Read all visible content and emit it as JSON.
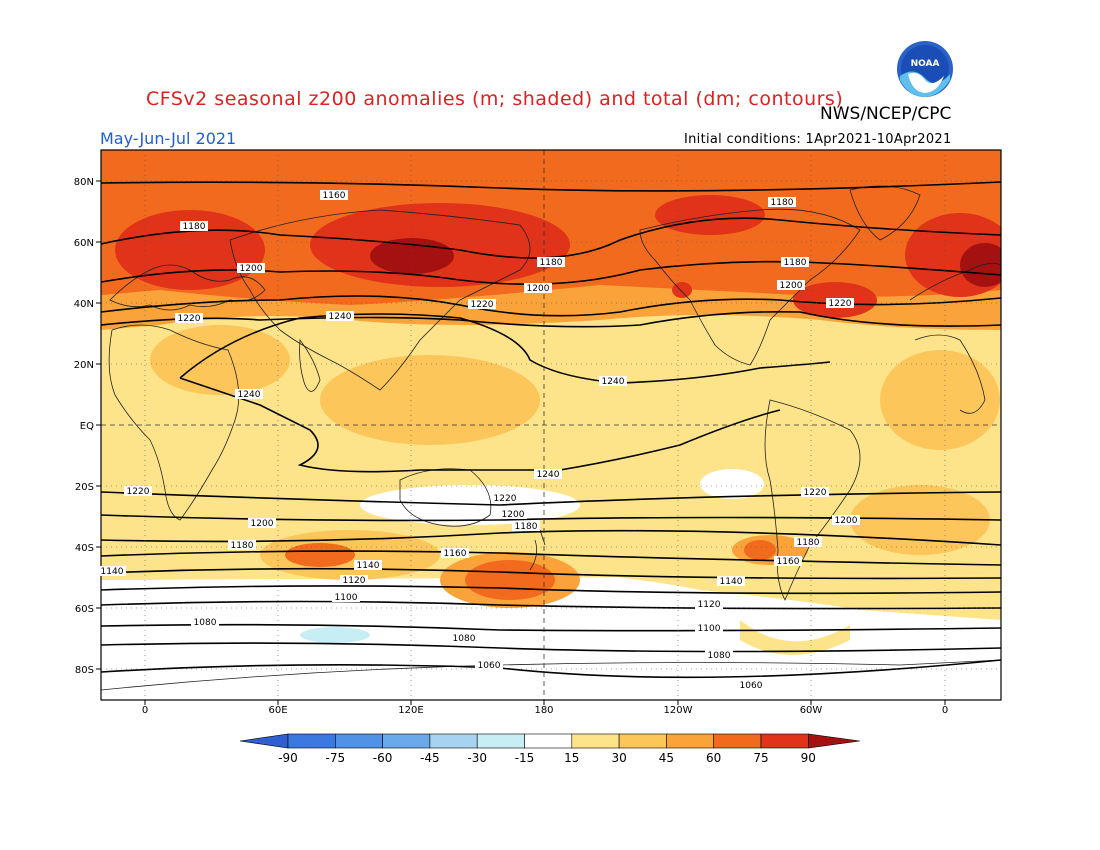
{
  "header": {
    "title": "CFSv2 seasonal z200 anomalies (m; shaded) and total (dm; contours)",
    "agency": "NWS/NCEP/CPC",
    "period": "May-Jun-Jul 2021",
    "initial_conditions": "Initial conditions: 1Apr2021-10Apr2021",
    "logo_text": "NOAA"
  },
  "axes": {
    "lat_labels": [
      "80N",
      "60N",
      "40N",
      "20N",
      "EQ",
      "20S",
      "40S",
      "60S",
      "80S"
    ],
    "lon_labels": [
      "0",
      "60E",
      "120E",
      "180",
      "120W",
      "60W",
      "0"
    ]
  },
  "colorbar": {
    "labels": [
      "-90",
      "-75",
      "-60",
      "-45",
      "-30",
      "-15",
      "15",
      "30",
      "45",
      "60",
      "75",
      "90"
    ],
    "colors": {
      "below_-90": "#2f5fd0",
      "-90_-75": "#3b78e0",
      "-75_-60": "#4f92e6",
      "-60_-45": "#6aa9ea",
      "-45_-30": "#a6d3f0",
      "-30_-15": "#c8eef5",
      "-15_15": "#ffffff",
      "15_30": "#fde48a",
      "30_45": "#fcc65a",
      "45_60": "#f9a33a",
      "60_75": "#f26a1e",
      "75_90": "#e0331a",
      "above_90": "#a51010"
    }
  },
  "contours": {
    "labels": [
      {
        "text": "1160"
      },
      {
        "text": "1180"
      },
      {
        "text": "1180"
      },
      {
        "text": "1200"
      },
      {
        "text": "1180"
      },
      {
        "text": "1180"
      },
      {
        "text": "1200"
      },
      {
        "text": "1200"
      },
      {
        "text": "1220"
      },
      {
        "text": "1220"
      },
      {
        "text": "1220"
      },
      {
        "text": "1240"
      },
      {
        "text": "1240"
      },
      {
        "text": "1240"
      },
      {
        "text": "1240"
      },
      {
        "text": "1220"
      },
      {
        "text": "1220"
      },
      {
        "text": "1220"
      },
      {
        "text": "1200"
      },
      {
        "text": "1200"
      },
      {
        "text": "1200"
      },
      {
        "text": "1180"
      },
      {
        "text": "1180"
      },
      {
        "text": "1160"
      },
      {
        "text": "1180"
      },
      {
        "text": "1140"
      },
      {
        "text": "1160"
      },
      {
        "text": "1140"
      },
      {
        "text": "1120"
      },
      {
        "text": "1140"
      },
      {
        "text": "1100"
      },
      {
        "text": "1120"
      },
      {
        "text": "1080"
      },
      {
        "text": "1100"
      },
      {
        "text": "1080"
      },
      {
        "text": "1080"
      },
      {
        "text": "1060"
      },
      {
        "text": "1060"
      }
    ]
  }
}
